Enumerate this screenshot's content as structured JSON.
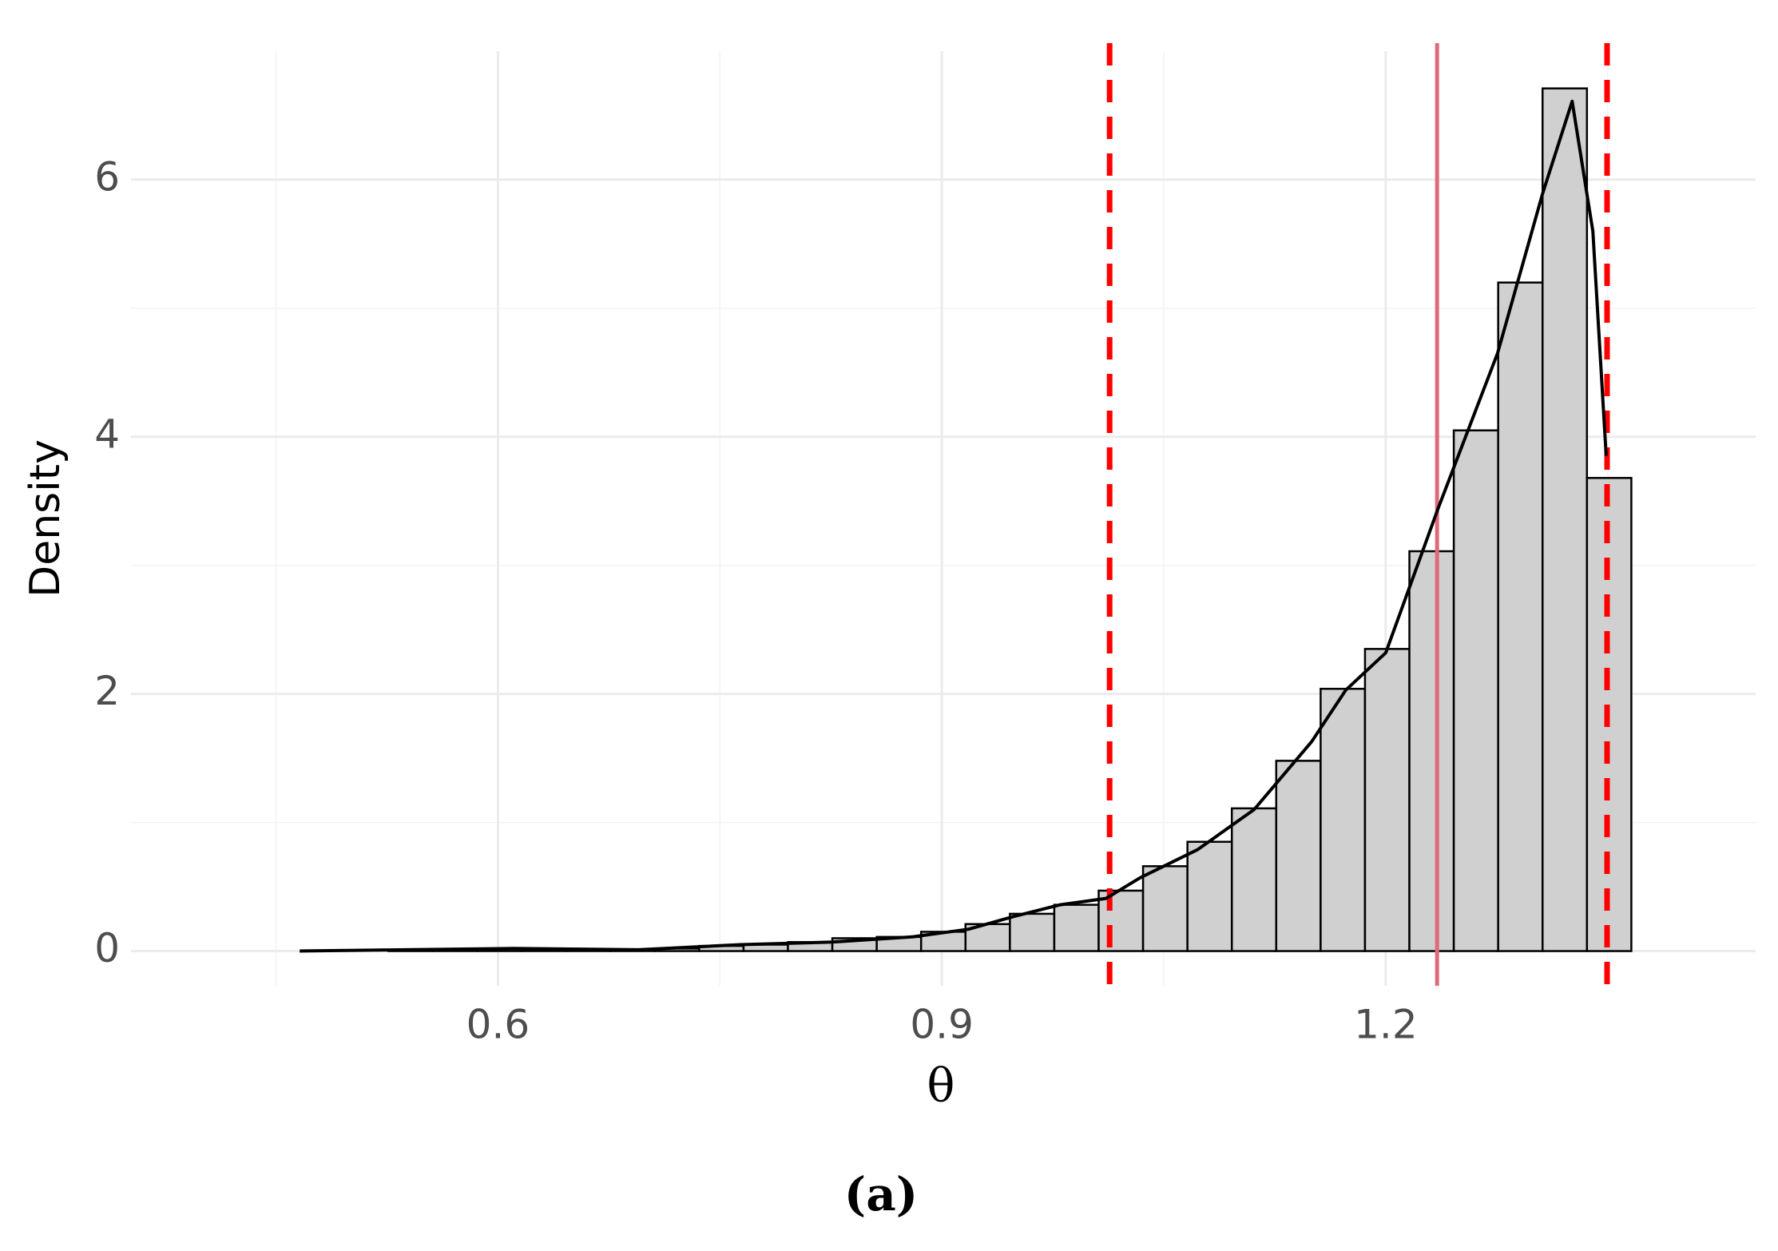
{
  "chart_data": {
    "type": "histogram",
    "xlabel": "θ",
    "ylabel": "Density",
    "caption": "(a)",
    "bins": [
      0.466,
      0.496,
      0.526,
      0.556,
      0.586,
      0.616,
      0.646,
      0.676,
      0.706,
      0.736,
      0.766,
      0.796,
      0.826,
      0.856,
      0.886,
      0.916,
      0.946,
      0.976,
      1.006,
      1.036,
      1.066,
      1.096,
      1.126,
      1.156,
      1.186,
      1.216,
      1.246,
      1.276,
      1.306,
      1.336,
      1.366
    ],
    "values": [
      0,
      0,
      0.01,
      0.01,
      0.02,
      0.01,
      0.01,
      0.01,
      0.02,
      0.04,
      0.05,
      0.07,
      0.1,
      0.11,
      0.15,
      0.21,
      0.29,
      0.36,
      0.47,
      0.66,
      0.85,
      1.11,
      1.48,
      2.04,
      2.35,
      3.11,
      4.05,
      5.2,
      6.71,
      3.68
    ],
    "color": "#d0d0d0",
    "edgecolor": "#000000",
    "density": {
      "color": "#000000",
      "x": [
        0.466,
        0.61,
        0.695,
        0.764,
        0.826,
        0.88,
        0.918,
        0.949,
        0.98,
        1.011,
        1.034,
        1.073,
        1.111,
        1.15,
        1.173,
        1.2,
        1.235,
        1.2756,
        1.306,
        1.326,
        1.34,
        1.349
      ],
      "y": [
        0,
        0.02,
        0.01,
        0.05,
        0.07,
        0.11,
        0.17,
        0.27,
        0.36,
        0.41,
        0.57,
        0.79,
        1.1,
        1.63,
        2.03,
        2.32,
        3.43,
        4.65,
        5.89,
        6.61,
        5.6,
        3.85
      ]
    },
    "vlines": [
      {
        "value": 1.0134,
        "style": "dashed",
        "color": "#ff0000"
      },
      {
        "value": 1.3496,
        "style": "dashed",
        "color": "#ff0000"
      },
      {
        "value": 1.2347,
        "style": "solid",
        "color": "#e06a78"
      }
    ],
    "xlim": [
      0.352,
      1.45
    ],
    "ylim": [
      -0.27,
      7
    ],
    "xticks": [
      0.6,
      0.9,
      1.2
    ],
    "yticks": [
      0,
      2,
      4,
      6
    ],
    "xminorticks": [
      0.45,
      0.75,
      1.05,
      1.35
    ],
    "yminorticks": [
      1,
      3,
      5
    ],
    "grid": true
  }
}
